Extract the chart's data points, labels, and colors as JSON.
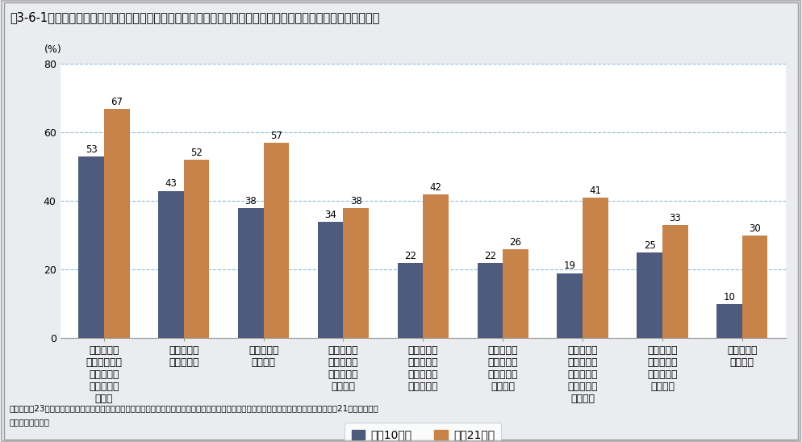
{
  "title": "図3-6-1　青少年の自然体験への取組状況（次の自然体験について「ほとんどしたことがない」と回答した割合）",
  "ylabel": "(%)",
  "ylim": [
    0,
    80
  ],
  "yticks": [
    0,
    20,
    40,
    60,
    80
  ],
  "categories": [
    "ロープウェ\nイやリフトを\n使わずに高\nい山を登っ\nたこと",
    "大きな木に\n登ったこと",
    "キャンプを\nしたこと",
    "太陽が昇る\nところや沈\nむところを\nみたこと",
    "海や川で貝\nを取ったり\n魚を釣った\nりしたこと",
    "夜空いっぱ\nいに輝く星\nをゆっくり\n見たこと",
    "チョウやト\nンボ、バッ\nタなどの昆\n虫をつかま\nえたこと",
    "野鳥を見た\nり、野鳥の\n鳴く声を聞\nいたこと",
    "海や川で泳\nいだこと"
  ],
  "series1_label": "平成10年度",
  "series2_label": "平成21年度",
  "series1_values": [
    53,
    43,
    38,
    34,
    22,
    22,
    19,
    25,
    10
  ],
  "series2_values": [
    67,
    52,
    57,
    38,
    42,
    26,
    41,
    33,
    30
  ],
  "bar_color1": "#4f5b7c",
  "bar_color2": "#c8834a",
  "bg_color": "#eaecf0",
  "plot_bg_color": "#ffffff",
  "grid_color": "#6baed6",
  "title_fontsize": 10.5,
  "label_fontsize": 8.5,
  "tick_fontsize": 9,
  "source_text_line1": "資料：平成23年版　子ども・若者白書（独立行政法人国立青少年教育振興機構「『青少年の体験活動等と自立に関する実態調査』報告書　平成21年度調査」）",
  "source_text_line2": "　より環境省作成"
}
